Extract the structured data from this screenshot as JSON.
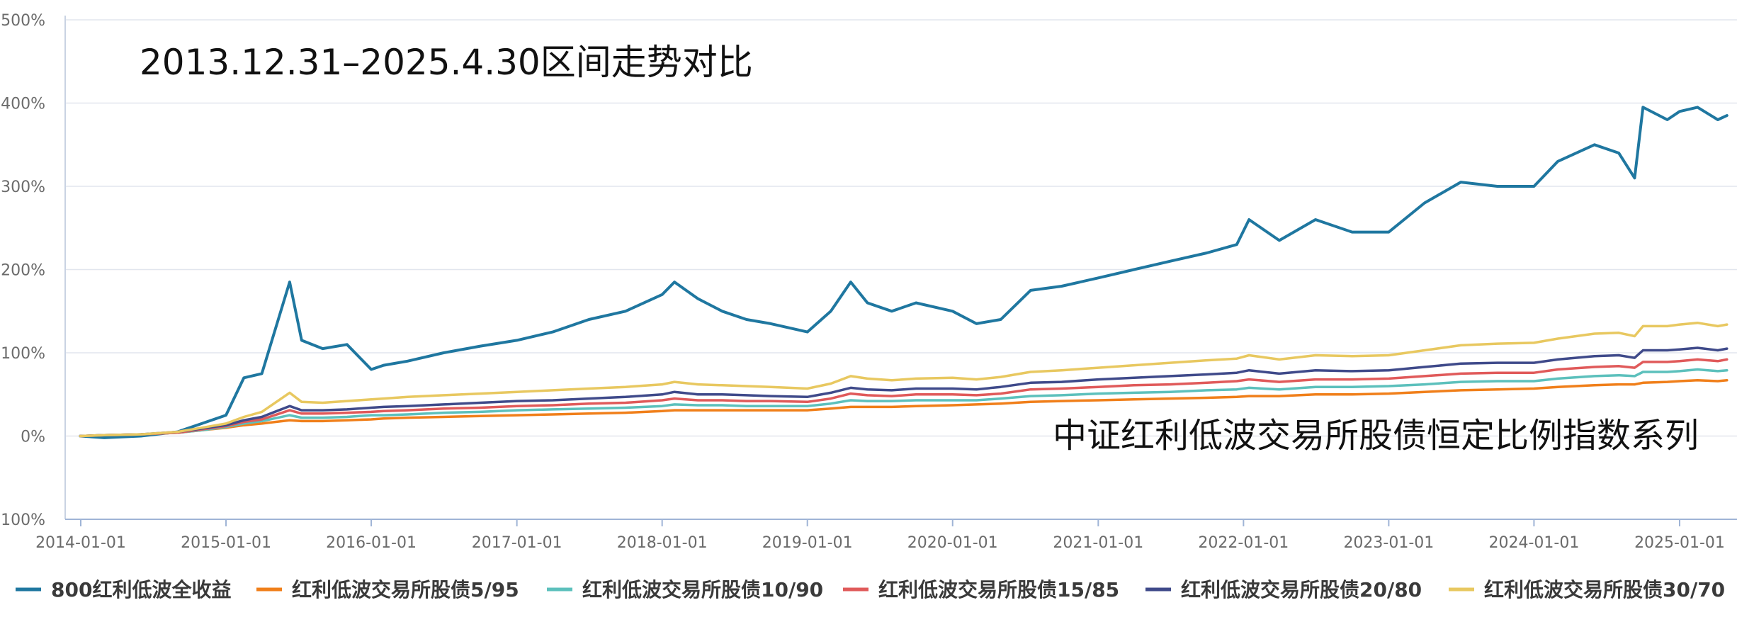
{
  "chart_data": {
    "type": "line",
    "title": "2013.12.31–2025.4.30区间走势对比",
    "annotation": "中证红利低波交易所股债恒定比例指数系列",
    "xlabel": "",
    "ylabel": "",
    "xlim": [
      "2014-01-01",
      "2025-04-30"
    ],
    "ylim": [
      -100,
      500
    ],
    "x_ticks": [
      "2014-01-01",
      "2015-01-01",
      "2016-01-01",
      "2017-01-01",
      "2018-01-01",
      "2019-01-01",
      "2020-01-01",
      "2021-01-01",
      "2022-01-01",
      "2023-01-01",
      "2024-01-01",
      "2025-01-01"
    ],
    "y_ticks": [
      -100,
      0,
      100,
      200,
      300,
      400,
      500
    ],
    "y_tick_labels": [
      "-100%",
      "0%",
      "100%",
      "200%",
      "300%",
      "400%",
      "500%"
    ],
    "grid": "horizontal",
    "legend_position": "bottom",
    "x": [
      "2013-12-31",
      "2014-03-01",
      "2014-06-01",
      "2014-09-01",
      "2014-11-01",
      "2015-01-01",
      "2015-02-15",
      "2015-04-01",
      "2015-06-10",
      "2015-07-10",
      "2015-09-01",
      "2015-11-01",
      "2016-01-01",
      "2016-02-01",
      "2016-04-01",
      "2016-07-01",
      "2016-10-01",
      "2017-01-01",
      "2017-04-01",
      "2017-07-01",
      "2017-10-01",
      "2018-01-01",
      "2018-02-01",
      "2018-04-01",
      "2018-06-01",
      "2018-08-01",
      "2018-10-01",
      "2019-01-01",
      "2019-03-01",
      "2019-04-20",
      "2019-06-01",
      "2019-08-01",
      "2019-10-01",
      "2020-01-01",
      "2020-03-01",
      "2020-05-01",
      "2020-07-15",
      "2020-10-01",
      "2021-01-01",
      "2021-04-01",
      "2021-07-01",
      "2021-10-01",
      "2021-12-15",
      "2022-01-15",
      "2022-04-01",
      "2022-07-01",
      "2022-10-01",
      "2023-01-01",
      "2023-04-01",
      "2023-07-01",
      "2023-10-01",
      "2024-01-01",
      "2024-03-01",
      "2024-06-01",
      "2024-08-01",
      "2024-09-10",
      "2024-10-01",
      "2024-12-01",
      "2025-01-01",
      "2025-02-15",
      "2025-04-07",
      "2025-04-30"
    ],
    "series": [
      {
        "name": "800红利低波全收益",
        "color": "#1f77a0",
        "values": [
          0,
          -2,
          0,
          5,
          15,
          25,
          70,
          75,
          185,
          115,
          105,
          110,
          80,
          85,
          90,
          100,
          108,
          115,
          125,
          140,
          150,
          170,
          185,
          165,
          150,
          140,
          135,
          125,
          150,
          185,
          160,
          150,
          160,
          150,
          135,
          140,
          175,
          180,
          190,
          200,
          210,
          220,
          230,
          260,
          235,
          260,
          245,
          245,
          280,
          305,
          300,
          300,
          330,
          350,
          340,
          310,
          395,
          380,
          390,
          395,
          380,
          385
        ]
      },
      {
        "name": "红利低波交易所股债5/95",
        "color": "#f07f1a",
        "values": [
          0,
          1,
          2,
          4,
          7,
          10,
          13,
          15,
          19,
          18,
          18,
          19,
          20,
          21,
          22,
          23,
          24,
          25,
          26,
          27,
          28,
          30,
          31,
          31,
          31,
          31,
          31,
          31,
          33,
          35,
          35,
          35,
          36,
          37,
          38,
          39,
          41,
          42,
          43,
          44,
          45,
          46,
          47,
          48,
          48,
          50,
          50,
          51,
          53,
          55,
          56,
          57,
          59,
          61,
          62,
          62,
          64,
          65,
          66,
          67,
          66,
          67
        ]
      },
      {
        "name": "红利低波交易所股债10/90",
        "color": "#5cc0bc",
        "values": [
          0,
          1,
          2,
          4,
          7,
          11,
          15,
          18,
          25,
          22,
          22,
          23,
          25,
          25,
          26,
          28,
          29,
          31,
          32,
          33,
          34,
          36,
          38,
          37,
          37,
          36,
          36,
          36,
          39,
          43,
          42,
          42,
          43,
          43,
          43,
          45,
          48,
          49,
          51,
          52,
          53,
          55,
          56,
          58,
          56,
          59,
          59,
          60,
          62,
          65,
          66,
          66,
          69,
          72,
          73,
          72,
          77,
          77,
          78,
          80,
          78,
          79
        ]
      },
      {
        "name": "红利低波交易所股债15/85",
        "color": "#e05a5a",
        "values": [
          0,
          1,
          2,
          4,
          8,
          12,
          17,
          20,
          31,
          27,
          27,
          28,
          29,
          30,
          31,
          33,
          34,
          36,
          37,
          39,
          40,
          43,
          45,
          43,
          43,
          42,
          42,
          41,
          45,
          51,
          49,
          48,
          50,
          50,
          49,
          51,
          56,
          57,
          59,
          61,
          62,
          64,
          66,
          68,
          65,
          68,
          68,
          69,
          72,
          75,
          76,
          76,
          80,
          83,
          84,
          82,
          89,
          89,
          90,
          92,
          90,
          92
        ]
      },
      {
        "name": "红利低波交易所股债20/80",
        "color": "#3f4a8a",
        "values": [
          0,
          1,
          2,
          5,
          9,
          13,
          19,
          23,
          36,
          31,
          31,
          32,
          34,
          35,
          36,
          38,
          40,
          42,
          43,
          45,
          47,
          50,
          53,
          50,
          50,
          49,
          48,
          47,
          52,
          58,
          56,
          55,
          57,
          57,
          56,
          59,
          64,
          65,
          68,
          70,
          72,
          74,
          76,
          79,
          75,
          79,
          78,
          79,
          83,
          87,
          88,
          88,
          92,
          96,
          97,
          94,
          103,
          103,
          104,
          106,
          103,
          105
        ]
      },
      {
        "name": "红利低波交易所股债30/70",
        "color": "#e8c860",
        "values": [
          0,
          1,
          2,
          5,
          10,
          15,
          23,
          29,
          52,
          41,
          40,
          42,
          44,
          45,
          47,
          49,
          51,
          53,
          55,
          57,
          59,
          62,
          65,
          62,
          61,
          60,
          59,
          57,
          63,
          72,
          69,
          67,
          69,
          70,
          68,
          71,
          77,
          79,
          82,
          85,
          88,
          91,
          93,
          97,
          92,
          97,
          96,
          97,
          103,
          109,
          111,
          112,
          117,
          123,
          124,
          120,
          132,
          132,
          134,
          136,
          132,
          134
        ]
      }
    ]
  }
}
